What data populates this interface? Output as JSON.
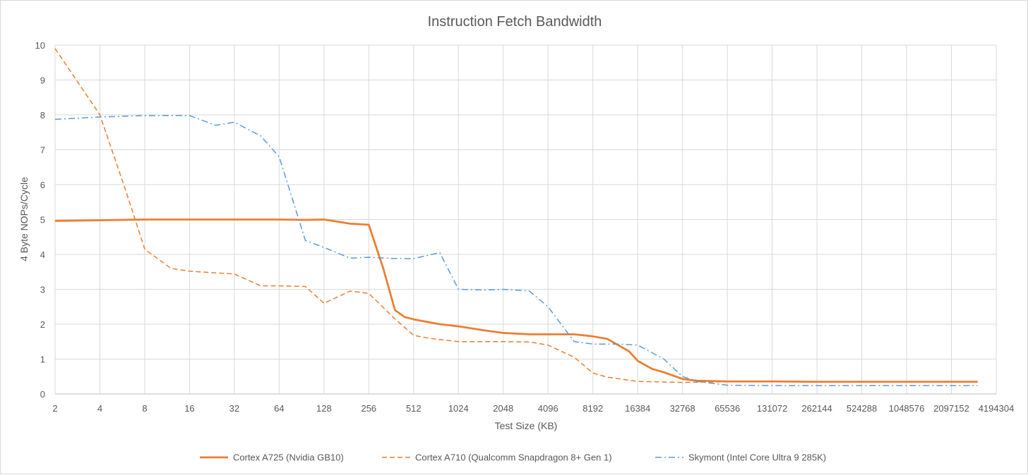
{
  "chart_data": {
    "type": "line",
    "title": "Instruction Fetch Bandwidth",
    "xlabel": "Test Size (KB)",
    "ylabel": "4 Byte NOPs/Cycle",
    "x_scale": "log2",
    "ylim": [
      0,
      10
    ],
    "yticks": [
      0,
      1,
      2,
      3,
      4,
      5,
      6,
      7,
      8,
      9,
      10
    ],
    "xticks": [
      2,
      4,
      8,
      16,
      32,
      64,
      128,
      256,
      512,
      1024,
      2048,
      4096,
      8192,
      16384,
      32768,
      65536,
      131072,
      262144,
      524288,
      1048576,
      2097152,
      4194304
    ],
    "grid": true,
    "legend_position": "bottom",
    "series": [
      {
        "name": "Cortex A725 (Nvidia GB10)",
        "color": "#ed7d31",
        "style": "solid",
        "points": [
          [
            2,
            4.96
          ],
          [
            4,
            4.98
          ],
          [
            8,
            5.0
          ],
          [
            16,
            5.0
          ],
          [
            32,
            5.0
          ],
          [
            64,
            5.0
          ],
          [
            96,
            4.99
          ],
          [
            128,
            5.0
          ],
          [
            192,
            4.88
          ],
          [
            256,
            4.85
          ],
          [
            320,
            3.6
          ],
          [
            384,
            2.4
          ],
          [
            448,
            2.2
          ],
          [
            512,
            2.14
          ],
          [
            640,
            2.06
          ],
          [
            768,
            2.0
          ],
          [
            1024,
            1.94
          ],
          [
            1536,
            1.82
          ],
          [
            2048,
            1.75
          ],
          [
            3072,
            1.71
          ],
          [
            4096,
            1.71
          ],
          [
            6144,
            1.71
          ],
          [
            8192,
            1.65
          ],
          [
            10240,
            1.58
          ],
          [
            14336,
            1.22
          ],
          [
            16384,
            0.95
          ],
          [
            20480,
            0.72
          ],
          [
            24576,
            0.62
          ],
          [
            32768,
            0.43
          ],
          [
            40960,
            0.38
          ],
          [
            65536,
            0.36
          ],
          [
            131072,
            0.36
          ],
          [
            262144,
            0.35
          ],
          [
            524288,
            0.35
          ],
          [
            1048576,
            0.35
          ],
          [
            2097152,
            0.35
          ],
          [
            3145728,
            0.35
          ]
        ]
      },
      {
        "name": "Cortex A710 (Qualcomm Snapdragon 8+ Gen 1)",
        "color": "#ed7d31",
        "style": "dashed",
        "points": [
          [
            2,
            9.9
          ],
          [
            4,
            8.0
          ],
          [
            6,
            5.8
          ],
          [
            8,
            4.15
          ],
          [
            12,
            3.6
          ],
          [
            16,
            3.52
          ],
          [
            24,
            3.47
          ],
          [
            32,
            3.44
          ],
          [
            48,
            3.1
          ],
          [
            64,
            3.1
          ],
          [
            96,
            3.08
          ],
          [
            128,
            2.6
          ],
          [
            192,
            2.95
          ],
          [
            256,
            2.88
          ],
          [
            384,
            2.15
          ],
          [
            512,
            1.68
          ],
          [
            640,
            1.6
          ],
          [
            768,
            1.56
          ],
          [
            1024,
            1.5
          ],
          [
            2048,
            1.5
          ],
          [
            3072,
            1.49
          ],
          [
            4096,
            1.4
          ],
          [
            6144,
            1.05
          ],
          [
            8192,
            0.6
          ],
          [
            10240,
            0.48
          ],
          [
            16384,
            0.36
          ],
          [
            32768,
            0.33
          ],
          [
            65536,
            0.35
          ],
          [
            131072,
            0.35
          ],
          [
            262144,
            0.35
          ],
          [
            524288,
            0.35
          ],
          [
            1048576,
            0.35
          ],
          [
            2097152,
            0.35
          ],
          [
            3145728,
            0.35
          ]
        ]
      },
      {
        "name": "Skymont (Intel Core Ultra 9 285K)",
        "color": "#5b9bd5",
        "style": "dashdot",
        "points": [
          [
            2,
            7.87
          ],
          [
            4,
            7.94
          ],
          [
            8,
            7.98
          ],
          [
            16,
            7.98
          ],
          [
            24,
            7.7
          ],
          [
            32,
            7.79
          ],
          [
            48,
            7.4
          ],
          [
            64,
            6.8
          ],
          [
            96,
            4.4
          ],
          [
            128,
            4.2
          ],
          [
            192,
            3.89
          ],
          [
            256,
            3.92
          ],
          [
            384,
            3.88
          ],
          [
            512,
            3.88
          ],
          [
            768,
            4.05
          ],
          [
            1024,
            3.0
          ],
          [
            1536,
            2.98
          ],
          [
            2048,
            3.0
          ],
          [
            3072,
            2.95
          ],
          [
            4096,
            2.5
          ],
          [
            6144,
            1.5
          ],
          [
            8192,
            1.43
          ],
          [
            12288,
            1.43
          ],
          [
            16384,
            1.4
          ],
          [
            24576,
            1.0
          ],
          [
            32768,
            0.5
          ],
          [
            40960,
            0.36
          ],
          [
            65536,
            0.25
          ],
          [
            131072,
            0.24
          ],
          [
            262144,
            0.24
          ],
          [
            524288,
            0.24
          ],
          [
            1048576,
            0.24
          ],
          [
            2097152,
            0.24
          ],
          [
            3145728,
            0.24
          ]
        ]
      }
    ]
  }
}
